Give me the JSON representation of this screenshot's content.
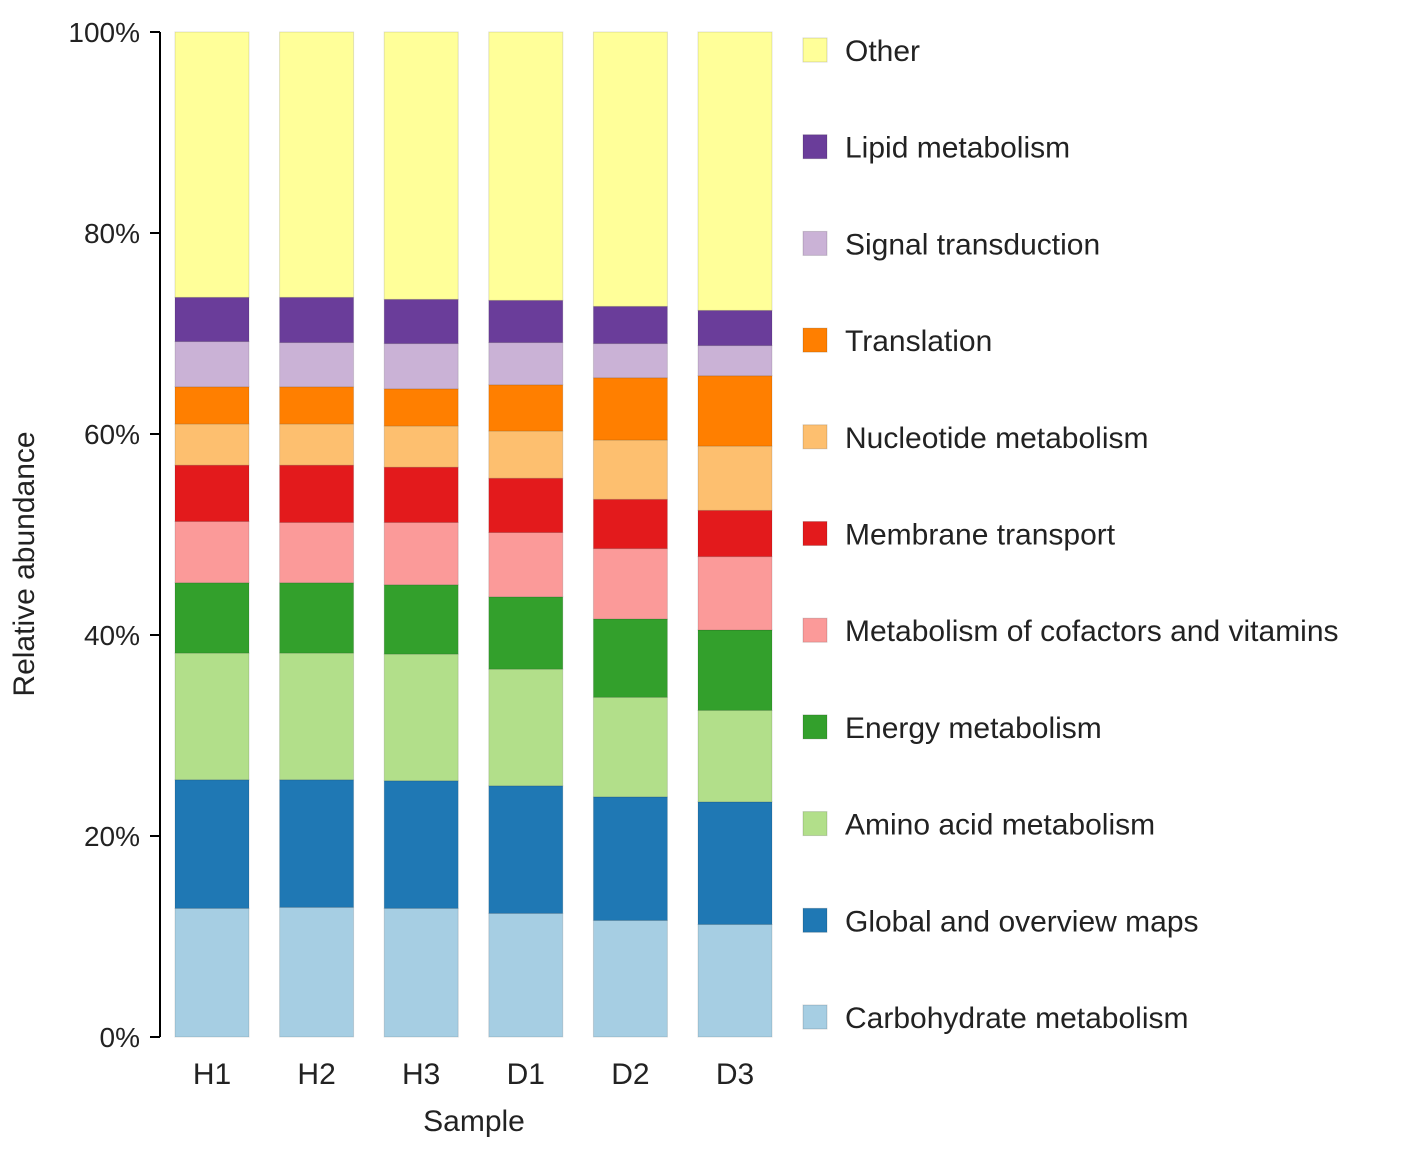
{
  "chart_data": {
    "type": "bar",
    "stacked": true,
    "title": "",
    "xlabel": "Sample",
    "ylabel": "Relative abundance",
    "ylim": [
      0,
      100
    ],
    "yticks": [
      "0%",
      "20%",
      "40%",
      "60%",
      "80%",
      "100%"
    ],
    "ytick_values": [
      0,
      20,
      40,
      60,
      80,
      100
    ],
    "categories": [
      "H1",
      "H2",
      "H3",
      "D1",
      "D2",
      "D3"
    ],
    "legend_position": "right",
    "series": [
      {
        "name": "Carbohydrate metabolism",
        "color": "#a6cee3",
        "values": [
          12.8,
          12.9,
          12.8,
          12.3,
          11.6,
          11.2
        ]
      },
      {
        "name": "Global and overview maps",
        "color": "#1f78b4",
        "values": [
          12.8,
          12.7,
          12.7,
          12.7,
          12.3,
          12.2
        ]
      },
      {
        "name": "Amino acid metabolism",
        "color": "#b2df8a",
        "values": [
          12.6,
          12.6,
          12.6,
          11.6,
          9.9,
          9.1
        ]
      },
      {
        "name": "Energy metabolism",
        "color": "#33a02c",
        "values": [
          7.0,
          7.0,
          6.9,
          7.2,
          7.8,
          8.0
        ]
      },
      {
        "name": "Metabolism of cofactors and vitamins",
        "color": "#fb9a99",
        "values": [
          6.1,
          6.0,
          6.2,
          6.4,
          7.0,
          7.3
        ]
      },
      {
        "name": "Membrane transport",
        "color": "#e31a1c",
        "values": [
          5.6,
          5.7,
          5.5,
          5.4,
          4.9,
          4.6
        ]
      },
      {
        "name": "Nucleotide metabolism",
        "color": "#fdbf6f",
        "values": [
          4.1,
          4.1,
          4.1,
          4.7,
          5.9,
          6.4
        ]
      },
      {
        "name": "Translation",
        "color": "#ff7f00",
        "values": [
          3.7,
          3.7,
          3.7,
          4.6,
          6.2,
          7.0
        ]
      },
      {
        "name": "Signal transduction",
        "color": "#cab2d6",
        "values": [
          4.5,
          4.4,
          4.5,
          4.2,
          3.4,
          3.0
        ]
      },
      {
        "name": "Lipid metabolism",
        "color": "#6a3d9a",
        "values": [
          4.4,
          4.5,
          4.4,
          4.2,
          3.7,
          3.5
        ]
      },
      {
        "name": "Other",
        "color": "#ffff99",
        "values": [
          26.4,
          26.4,
          26.6,
          26.7,
          27.3,
          27.7
        ]
      }
    ]
  }
}
